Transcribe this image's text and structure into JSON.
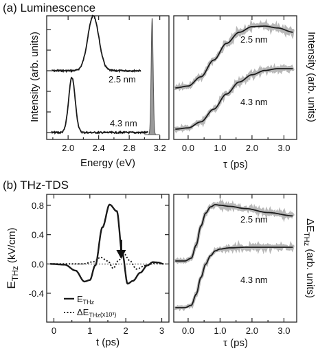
{
  "chart_data": [
    {
      "panel": "a-left",
      "type": "line",
      "xlabel": "Energy (eV)",
      "ylabel": "Intensity (arb. units)",
      "xlim": [
        1.72,
        3.32
      ],
      "xticks": [
        "2.0",
        "2.4",
        "2.8",
        "3.2"
      ],
      "series": [
        {
          "name": "2.5 nm",
          "peak_eV": 2.33,
          "fwhm_eV": 0.17,
          "offset": 0.55,
          "tail_to_eV": 2.95
        },
        {
          "name": "4.3 nm",
          "peak_eV": 2.05,
          "fwhm_eV": 0.1,
          "offset": 0.02,
          "tail_to_eV": 3.05
        },
        {
          "name": "excitation",
          "peak_eV": 3.1,
          "fwhm_eV": 0.03,
          "filled": true,
          "color": "#9a9a9a"
        }
      ]
    },
    {
      "panel": "a-right",
      "type": "line",
      "xlabel": "τ (ps)",
      "ylabel": "Intensity (arb. units)",
      "xlim": [
        -0.45,
        3.4
      ],
      "xticks": [
        "0.0",
        "1.0",
        "2.0",
        "3.0"
      ],
      "series": [
        {
          "name": "2.5 nm",
          "x": [
            -0.4,
            0,
            0.4,
            0.8,
            1.2,
            1.6,
            2.0,
            2.4,
            2.8,
            3.3
          ],
          "y": [
            0,
            0.03,
            0.18,
            0.45,
            0.72,
            0.9,
            0.99,
            1.0,
            0.97,
            0.9
          ]
        },
        {
          "name": "4.3 nm",
          "x": [
            -0.4,
            0,
            0.4,
            0.8,
            1.2,
            1.6,
            2.0,
            2.4,
            2.8,
            3.3
          ],
          "y": [
            0,
            0.02,
            0.12,
            0.33,
            0.58,
            0.78,
            0.9,
            0.97,
            1.0,
            1.0
          ]
        }
      ]
    },
    {
      "panel": "b-left",
      "type": "line",
      "xlabel": "t (ps)",
      "ylabel": "E_THz (kV/cm)",
      "xlim": [
        -0.2,
        3.2
      ],
      "ylim": [
        -0.52,
        0.95
      ],
      "xticks": [
        "0",
        "1",
        "2",
        "3"
      ],
      "yticks": [
        "-0.4",
        "0.0",
        "0.4",
        "0.8"
      ],
      "series": [
        {
          "name": "E_THz",
          "style": "solid",
          "x": [
            -0.1,
            0.3,
            0.6,
            0.85,
            1.0,
            1.15,
            1.35,
            1.55,
            1.75,
            1.9,
            2.05,
            2.2,
            2.4,
            2.6,
            2.75,
            2.9,
            3.05
          ],
          "y": [
            0,
            -0.01,
            -0.09,
            -0.24,
            -0.22,
            -0.02,
            0.5,
            0.81,
            0.72,
            0.15,
            -0.27,
            -0.23,
            -0.12,
            -0.02,
            0.025,
            0.02,
            0
          ]
        },
        {
          "name": "ΔE_THz (x10³)",
          "style": "dotted",
          "x": [
            -0.1,
            0.8,
            1.1,
            1.3,
            1.5,
            1.65,
            1.8,
            1.95,
            2.1,
            2.3,
            2.55,
            2.8,
            3.05
          ],
          "y": [
            0,
            0,
            0.03,
            0.09,
            0.04,
            -0.06,
            0.05,
            0.14,
            0.05,
            -0.07,
            -0.02,
            0.01,
            0
          ]
        }
      ],
      "arrow_at_x": 1.87
    },
    {
      "panel": "b-right",
      "type": "line",
      "xlabel": "τ (ps)",
      "ylabel": "ΔE_THz (arb. units)",
      "xlim": [
        -0.45,
        3.4
      ],
      "xticks": [
        "0.0",
        "1.0",
        "2.0",
        "3.0"
      ],
      "series": [
        {
          "name": "2.5 nm",
          "x": [
            -0.4,
            -0.1,
            0.1,
            0.25,
            0.4,
            0.55,
            0.7,
            0.85,
            1.0,
            1.3,
            1.8,
            2.5,
            3.3
          ],
          "y": [
            0,
            0,
            0.05,
            0.28,
            0.62,
            0.85,
            0.96,
            1.0,
            0.99,
            0.97,
            0.93,
            0.86,
            0.8
          ]
        },
        {
          "name": "4.3 nm",
          "x": [
            -0.4,
            -0.1,
            0.1,
            0.25,
            0.4,
            0.55,
            0.7,
            0.85,
            1.0,
            1.3,
            1.8,
            2.5,
            3.3
          ],
          "y": [
            0,
            0,
            0.04,
            0.22,
            0.5,
            0.72,
            0.86,
            0.94,
            0.97,
            0.99,
            1.0,
            1.0,
            1.0
          ]
        }
      ]
    }
  ],
  "labels": {
    "panel_a": "(a) Luminescence",
    "panel_b": "(b) THz-TDS",
    "a_left_ylabel": "Intensity (arb. units)",
    "a_left_xlabel": "Energy (eV)",
    "a_right_ylabel": "Intensity (arb. units)",
    "a_right_xlabel": "τ (ps)",
    "b_left_xlabel": "t (ps)",
    "b_left_ylabel_main": "E",
    "b_left_ylabel_sub": "THz",
    "b_left_ylabel_unit": " (kV/cm)",
    "b_right_ylabel_main": "ΔE",
    "b_right_ylabel_sub": "THz",
    "b_right_ylabel_unit": " (arb. units)",
    "b_right_xlabel": "τ (ps)",
    "a_left_series_labels": [
      "2.5 nm",
      "4.3 nm"
    ],
    "a_right_series_labels": [
      "2.5 nm",
      "4.3 nm"
    ],
    "b_right_series_labels": [
      "2.5 nm",
      "4.3 nm"
    ],
    "legend_e_main": "E",
    "legend_e_sub": "THz",
    "legend_de_main": "ΔE",
    "legend_de_sub": "THz",
    "legend_de_mult": "(x10³)"
  },
  "colors": {
    "data": "#b8b8b8",
    "fit": "#1a1a1a",
    "excitation": "#9a9a9a"
  }
}
